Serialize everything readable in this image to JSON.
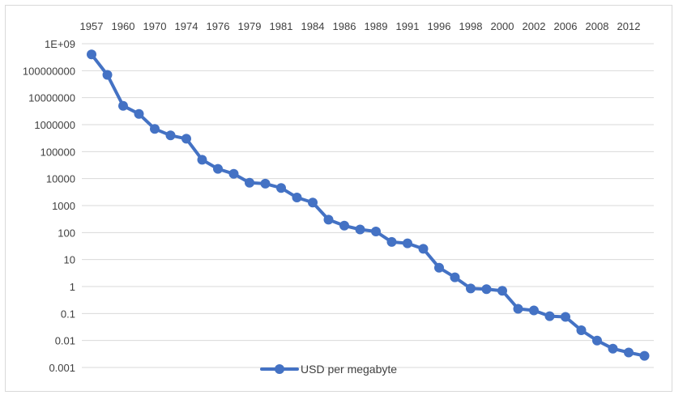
{
  "chart_data": {
    "type": "line",
    "title": "",
    "xlabel": "",
    "ylabel": "",
    "y_scale": "log",
    "ylim": [
      0.001,
      1000000000
    ],
    "grid": "horizontal",
    "x_axis_position": "top",
    "legend_position": "bottom",
    "series_color": "#4472C4",
    "y_tick_labels": [
      "1E+09",
      "100000000",
      "10000000",
      "1000000",
      "100000",
      "10000",
      "1000",
      "100",
      "10",
      "1",
      "0.1",
      "0.01",
      "0.001"
    ],
    "y_tick_values": [
      1000000000,
      100000000,
      10000000,
      1000000,
      100000,
      10000,
      1000,
      100,
      10,
      1,
      0.1,
      0.01,
      0.001
    ],
    "x_tick_labels": [
      "1957",
      "1960",
      "1970",
      "1974",
      "1976",
      "1979",
      "1981",
      "1984",
      "1986",
      "1989",
      "1991",
      "1996",
      "1998",
      "2000",
      "2002",
      "2006",
      "2008",
      "2012"
    ],
    "series": [
      {
        "name": "USD per megabyte",
        "values": [
          400000000,
          70000000,
          5000000,
          2500000,
          700000,
          400000,
          300000,
          50000,
          23000,
          15000,
          7000,
          6500,
          4500,
          2000,
          1300,
          300,
          180,
          130,
          110,
          45,
          40,
          25,
          5,
          2.2,
          0.85,
          0.8,
          0.7,
          0.15,
          0.13,
          0.08,
          0.075,
          0.024,
          0.01,
          0.005,
          0.0036,
          0.0027
        ]
      }
    ]
  }
}
